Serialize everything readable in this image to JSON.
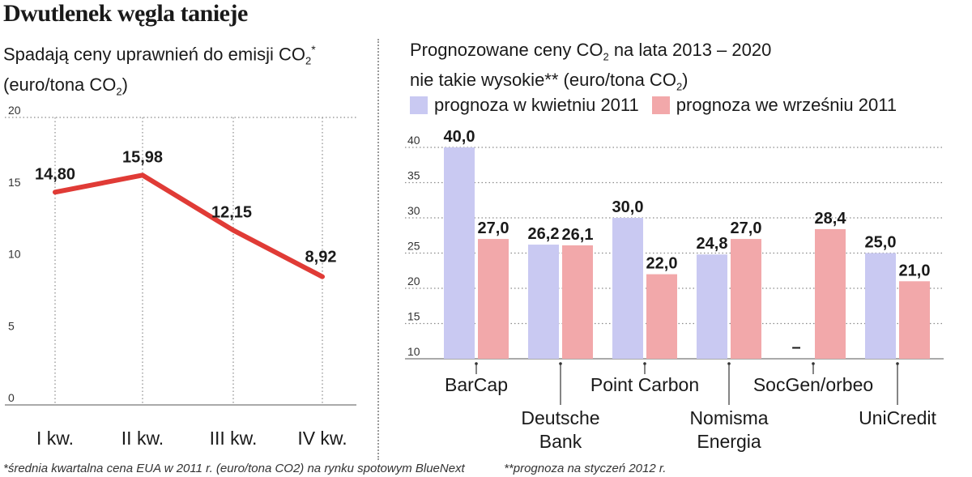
{
  "headline": "Dwutlenek węgla tanieje",
  "left_chart": {
    "subtitle_line1_pre": "Spadają ceny uprawnień do emisji CO",
    "subtitle_line1_sub": "2",
    "subtitle_line1_post": "*",
    "subtitle_line2_pre": "(euro/tona CO",
    "subtitle_line2_sub": "2",
    "subtitle_line2_post": ")"
  },
  "right_chart": {
    "subtitle_line1_pre": "Prognozowane ceny CO",
    "subtitle_line1_sub": "2",
    "subtitle_line1_post": " na lata 2013 – 2020",
    "subtitle_line2_pre": "nie takie wysokie** (euro/tona CO",
    "subtitle_line2_sub": "2",
    "subtitle_line2_post": ")"
  },
  "footnotes": {
    "left": "*średnia kwartalna cena EUA w 2011 r. (euro/tona CO2) na rynku spotowym BlueNext",
    "right": "**prognoza na styczeń 2012 r."
  },
  "colors": {
    "line": "#e03b36",
    "april": "#c9c9f2",
    "september": "#f2a8aa",
    "grid": "#8a8a8a"
  },
  "chart_data": [
    {
      "type": "line",
      "categories": [
        "I kw.",
        "II kw.",
        "III kw.",
        "IV kw."
      ],
      "values": [
        14.8,
        15.98,
        12.15,
        8.92
      ],
      "value_labels": [
        "14,80",
        "15,98",
        "12,15",
        "8,92"
      ],
      "yticks": [
        "0",
        "5",
        "10",
        "15",
        "20"
      ],
      "ylim": [
        0,
        20
      ],
      "grid": "vertical dotted",
      "legend": "none"
    },
    {
      "type": "bar",
      "categories": [
        "BarCap",
        "Deutsche Bank",
        "Point Carbon",
        "Nomisma Energia",
        "SocGen/orbeo",
        "UniCredit"
      ],
      "category_lines": [
        [
          "BarCap"
        ],
        [
          "Deutsche",
          "Bank"
        ],
        [
          "Point Carbon"
        ],
        [
          "Nomisma",
          "Energia"
        ],
        [
          "SocGen/orbeo"
        ],
        [
          "UniCredit"
        ]
      ],
      "series": [
        {
          "name": "prognoza w kwietniu 2011",
          "values": [
            40.0,
            26.2,
            30.0,
            24.8,
            null,
            25.0
          ],
          "labels": [
            "40,0",
            "26,2",
            "30,0",
            "24,8",
            "–",
            "25,0"
          ]
        },
        {
          "name": "prognoza we wrześniu 2011",
          "values": [
            27.0,
            26.1,
            22.0,
            27.0,
            28.4,
            21.0
          ],
          "labels": [
            "27,0",
            "26,1",
            "22,0",
            "27,0",
            "28,4",
            "21,0"
          ]
        }
      ],
      "yticks": [
        "10",
        "15",
        "20",
        "25",
        "30",
        "35",
        "40"
      ],
      "ylim": [
        10,
        40
      ],
      "grid": "horizontal dotted",
      "legend": "top"
    }
  ]
}
